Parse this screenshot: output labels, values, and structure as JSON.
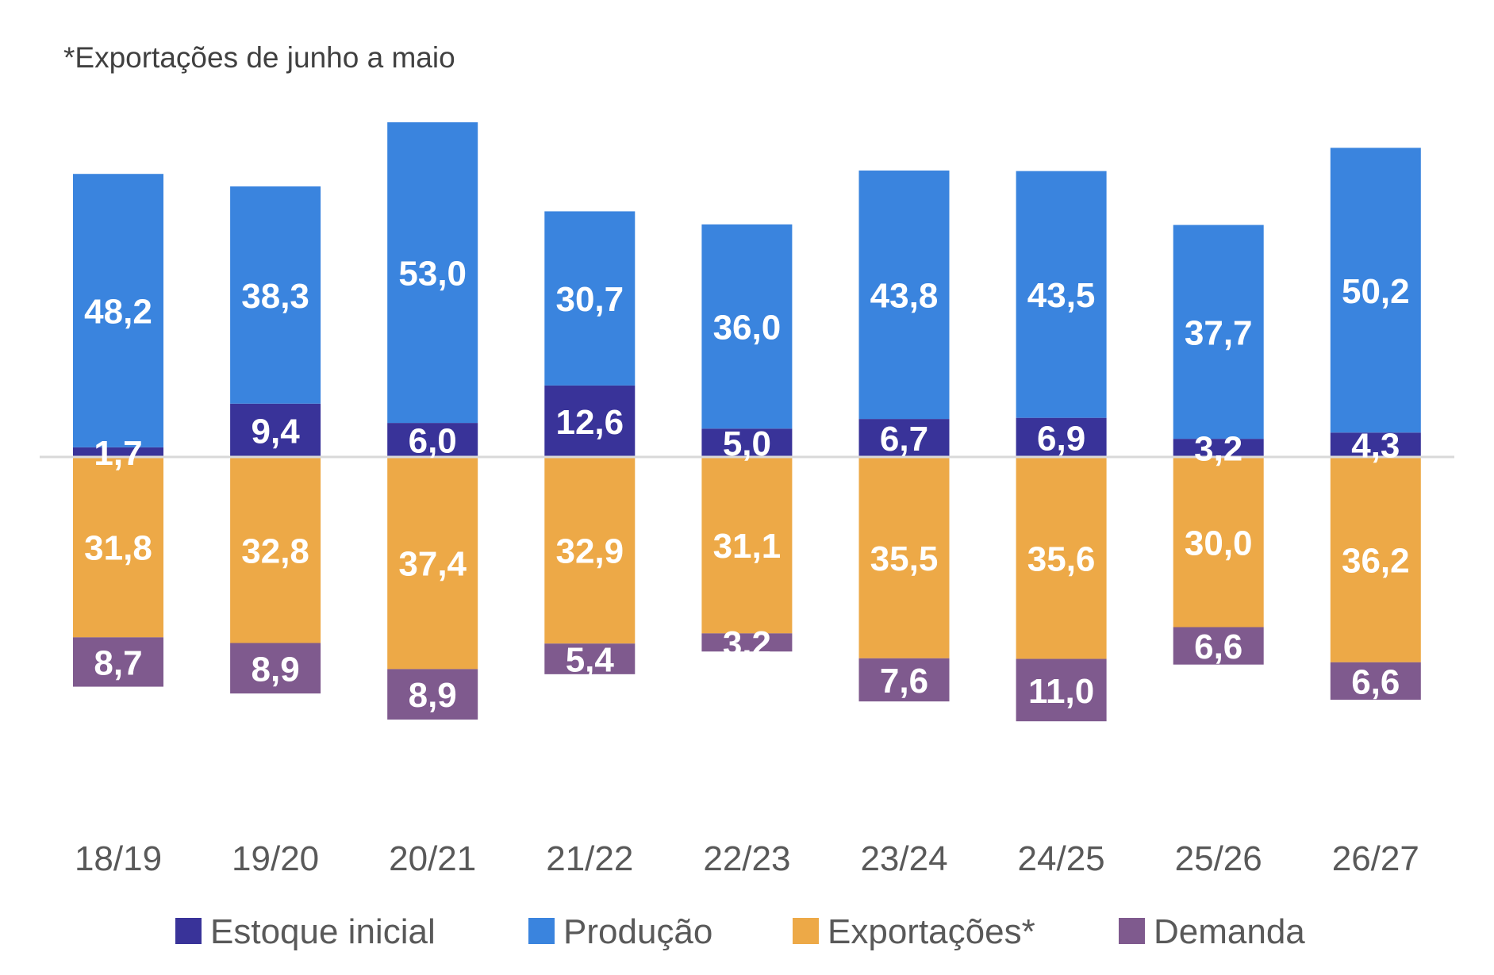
{
  "chart_data": {
    "type": "bar",
    "stacked": true,
    "diverging": true,
    "note": "*Exportações de junho a maio",
    "title": "",
    "xlabel": "",
    "ylabel": "",
    "categories": [
      "18/19",
      "19/20",
      "20/21",
      "21/22",
      "22/23",
      "23/24",
      "24/25",
      "25/26",
      "26/27"
    ],
    "series": [
      {
        "name": "Estoque inicial",
        "color": "#393399",
        "direction": "up",
        "values": [
          1.7,
          9.4,
          6.0,
          12.6,
          5.0,
          6.7,
          6.9,
          3.2,
          4.3
        ],
        "labels": [
          "1,7",
          "9,4",
          "6,0",
          "12,6",
          "5,0",
          "6,7",
          "6,9",
          "3,2",
          "4,3"
        ]
      },
      {
        "name": "Produção",
        "color": "#3A84DE",
        "direction": "up",
        "values": [
          48.2,
          38.3,
          53.0,
          30.7,
          36.0,
          43.8,
          43.5,
          37.7,
          50.2
        ],
        "labels": [
          "48,2",
          "38,3",
          "53,0",
          "30,7",
          "36,0",
          "43,8",
          "43,5",
          "37,7",
          "50,2"
        ]
      },
      {
        "name": "Exportações*",
        "color": "#EDA947",
        "direction": "down",
        "values": [
          31.8,
          32.8,
          37.4,
          32.9,
          31.1,
          35.5,
          35.6,
          30.0,
          36.2
        ],
        "labels": [
          "31,8",
          "32,8",
          "37,4",
          "32,9",
          "31,1",
          "35,5",
          "35,6",
          "30,0",
          "36,2"
        ]
      },
      {
        "name": "Demanda",
        "color": "#7F5A8E",
        "direction": "down",
        "values": [
          8.7,
          8.9,
          8.9,
          5.4,
          3.2,
          7.6,
          11.0,
          6.6,
          6.6
        ],
        "labels": [
          "8,7",
          "8,9",
          "8,9",
          "5,4",
          "3,2",
          "7,6",
          "11,0",
          "6,6",
          "6,6"
        ]
      }
    ],
    "legend": {
      "position": "bottom",
      "items": [
        "Estoque inicial",
        "Produção",
        "Exportações*",
        "Demanda"
      ]
    },
    "grid": false,
    "zero_line": true,
    "yaxis_visible": false,
    "ylim": [
      -49,
      73
    ]
  }
}
